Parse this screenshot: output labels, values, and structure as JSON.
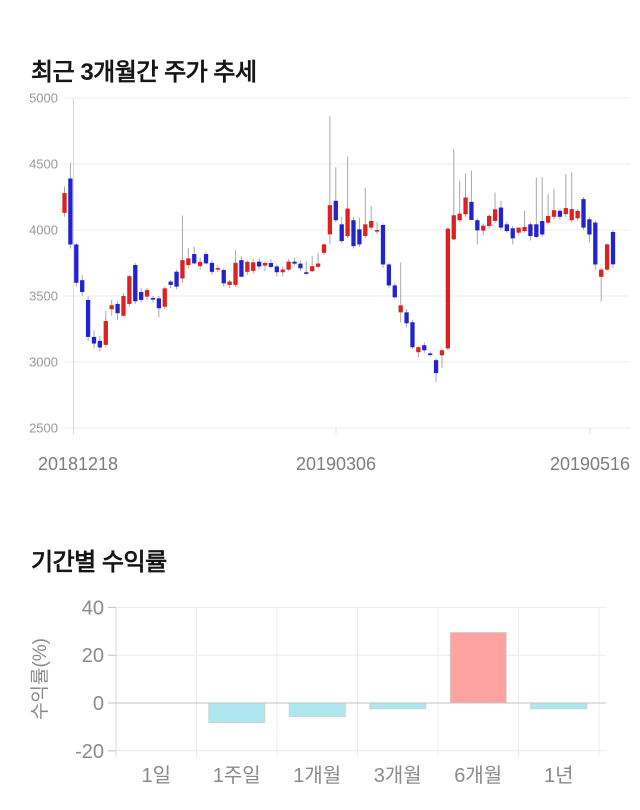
{
  "chart_data": [
    {
      "type": "candlestick",
      "title": "최근 3개월간 주가 추세",
      "ylim": [
        2500,
        5000
      ],
      "y_ticks": [
        5000,
        4500,
        4000,
        3500,
        3000,
        2500
      ],
      "x_tick_labels": [
        "20181218",
        "20190306",
        "20190516"
      ],
      "grid": true,
      "up_color": "#e02020",
      "down_color": "#2323cd",
      "wick_color": "#a8a8a8",
      "grid_color": "#ececec",
      "axis_color": "#dcdcdc",
      "tick_text_color": "#999999",
      "date_text_color": "#7d7d7d",
      "candles": [
        [
          4130,
          4330,
          4100,
          4280
        ],
        [
          4390,
          4510,
          3860,
          3890
        ],
        [
          3890,
          3900,
          3570,
          3600
        ],
        [
          3620,
          3660,
          3500,
          3530
        ],
        [
          3470,
          3500,
          3160,
          3190
        ],
        [
          3190,
          3240,
          3100,
          3140
        ],
        [
          3160,
          3200,
          3080,
          3110
        ],
        [
          3130,
          3390,
          3110,
          3310
        ],
        [
          3400,
          3470,
          3350,
          3430
        ],
        [
          3440,
          3460,
          3320,
          3370
        ],
        [
          3350,
          3520,
          3340,
          3500
        ],
        [
          3440,
          3660,
          3420,
          3650
        ],
        [
          3735,
          3750,
          3440,
          3460
        ],
        [
          3530,
          3560,
          3450,
          3470
        ],
        [
          3495,
          3560,
          3470,
          3545
        ],
        [
          3485,
          3500,
          3450,
          3478
        ],
        [
          3482,
          3500,
          3340,
          3407
        ],
        [
          3419,
          3570,
          3400,
          3558
        ],
        [
          3609,
          3620,
          3560,
          3584
        ],
        [
          3684,
          3700,
          3550,
          3571
        ],
        [
          3633,
          4110,
          3600,
          3772
        ],
        [
          3734,
          3861,
          3710,
          3785
        ],
        [
          3818,
          3874,
          3740,
          3747
        ],
        [
          3726,
          3790,
          3700,
          3759
        ],
        [
          3818,
          3830,
          3740,
          3747
        ],
        [
          3751,
          3770,
          3660,
          3683
        ],
        [
          3700,
          3730,
          3680,
          3712
        ],
        [
          3697,
          3710,
          3570,
          3596
        ],
        [
          3584,
          3620,
          3560,
          3609
        ],
        [
          3584,
          3848,
          3570,
          3751
        ],
        [
          3772,
          3800,
          3640,
          3646
        ],
        [
          3683,
          3770,
          3660,
          3759
        ],
        [
          3690,
          3780,
          3670,
          3755
        ],
        [
          3760,
          3790,
          3700,
          3724
        ],
        [
          3730,
          3760,
          3690,
          3750
        ],
        [
          3750,
          3780,
          3710,
          3720
        ],
        [
          3724,
          3740,
          3650,
          3680
        ],
        [
          3680,
          3720,
          3650,
          3700
        ],
        [
          3700,
          3780,
          3690,
          3760
        ],
        [
          3760,
          3790,
          3730,
          3745
        ],
        [
          3745,
          3770,
          3690,
          3710
        ],
        [
          3680,
          3764,
          3660,
          3670
        ],
        [
          3688,
          3802,
          3680,
          3726
        ],
        [
          3721,
          3827,
          3710,
          3746
        ],
        [
          3827,
          3900,
          3810,
          3891
        ],
        [
          3967,
          4860,
          3891,
          4188
        ],
        [
          4221,
          4475,
          4060,
          4074
        ],
        [
          4043,
          4100,
          3900,
          3916
        ],
        [
          3954,
          4556,
          3940,
          4162
        ],
        [
          4074,
          4100,
          3860,
          3878
        ],
        [
          4005,
          4094,
          3870,
          3891
        ],
        [
          3954,
          4317,
          3940,
          4043
        ],
        [
          4018,
          4180,
          4000,
          4068
        ],
        [
          3995,
          4060,
          3970,
          4000
        ],
        [
          4038,
          4050,
          3713,
          3739
        ],
        [
          3739,
          3750,
          3560,
          3580
        ],
        [
          3580,
          3600,
          3480,
          3490
        ],
        [
          3376,
          3754,
          3301,
          3429
        ],
        [
          3376,
          3400,
          3260,
          3293
        ],
        [
          3301,
          3320,
          3100,
          3112
        ],
        [
          3074,
          3120,
          3036,
          3112
        ],
        [
          3127,
          3150,
          3070,
          3089
        ],
        [
          3065,
          3080,
          3040,
          3060
        ],
        [
          3014,
          3030,
          2848,
          2916
        ],
        [
          3051,
          3100,
          2953,
          3089
        ],
        [
          3103,
          4020,
          3090,
          4010
        ],
        [
          3929,
          4614,
          3920,
          4112
        ],
        [
          4074,
          4373,
          4060,
          4124
        ],
        [
          4119,
          4429,
          4100,
          4246
        ],
        [
          4213,
          4449,
          4074,
          4076
        ],
        [
          4074,
          4090,
          3891,
          3997
        ],
        [
          3995,
          4050,
          3960,
          4033
        ],
        [
          4030,
          4120,
          4010,
          4107
        ],
        [
          4069,
          4284,
          4050,
          4157
        ],
        [
          4170,
          4220,
          4000,
          4018
        ],
        [
          4043,
          4060,
          3980,
          3992
        ],
        [
          4013,
          4030,
          3891,
          3937
        ],
        [
          3980,
          4020,
          3960,
          4018
        ],
        [
          3992,
          4145,
          3980,
          4023
        ],
        [
          4043,
          4060,
          3920,
          3954
        ],
        [
          4043,
          4398,
          3940,
          3947
        ],
        [
          4068,
          4400,
          3950,
          3966
        ],
        [
          4055,
          4272,
          4040,
          4106
        ],
        [
          4100,
          4310,
          4080,
          4150
        ],
        [
          4145,
          4160,
          4080,
          4100
        ],
        [
          4120,
          4424,
          4100,
          4166
        ],
        [
          4074,
          4437,
          4060,
          4158
        ],
        [
          4089,
          4160,
          4070,
          4145
        ],
        [
          4234,
          4250,
          4000,
          4018
        ],
        [
          4081,
          4100,
          3903,
          3966
        ],
        [
          4056,
          4070,
          3700,
          3739
        ],
        [
          3645,
          3710,
          3459,
          3700
        ],
        [
          3700,
          3900,
          3690,
          3891
        ],
        [
          3985,
          4000,
          3710,
          3740
        ]
      ]
    },
    {
      "type": "bar",
      "title": "기간별 수익률",
      "ylabel": "수익률(%)",
      "categories": [
        "1일",
        "1주일",
        "1개월",
        "3개월",
        "6개월",
        "1년"
      ],
      "values": [
        0,
        -8.2,
        -5.6,
        -2.4,
        29.5,
        -2.4
      ],
      "y_ticks": [
        40,
        20,
        0,
        -20
      ],
      "ylim": [
        -20,
        40
      ],
      "grid": true,
      "positive_color": "#ffa2a2",
      "negative_color": "#ade8f1",
      "bar_border_color": "#d0d0d0",
      "zero_line_color": "#c3c3c3",
      "grid_color": "#ececec",
      "text_color": "#8a8a8a"
    }
  ]
}
